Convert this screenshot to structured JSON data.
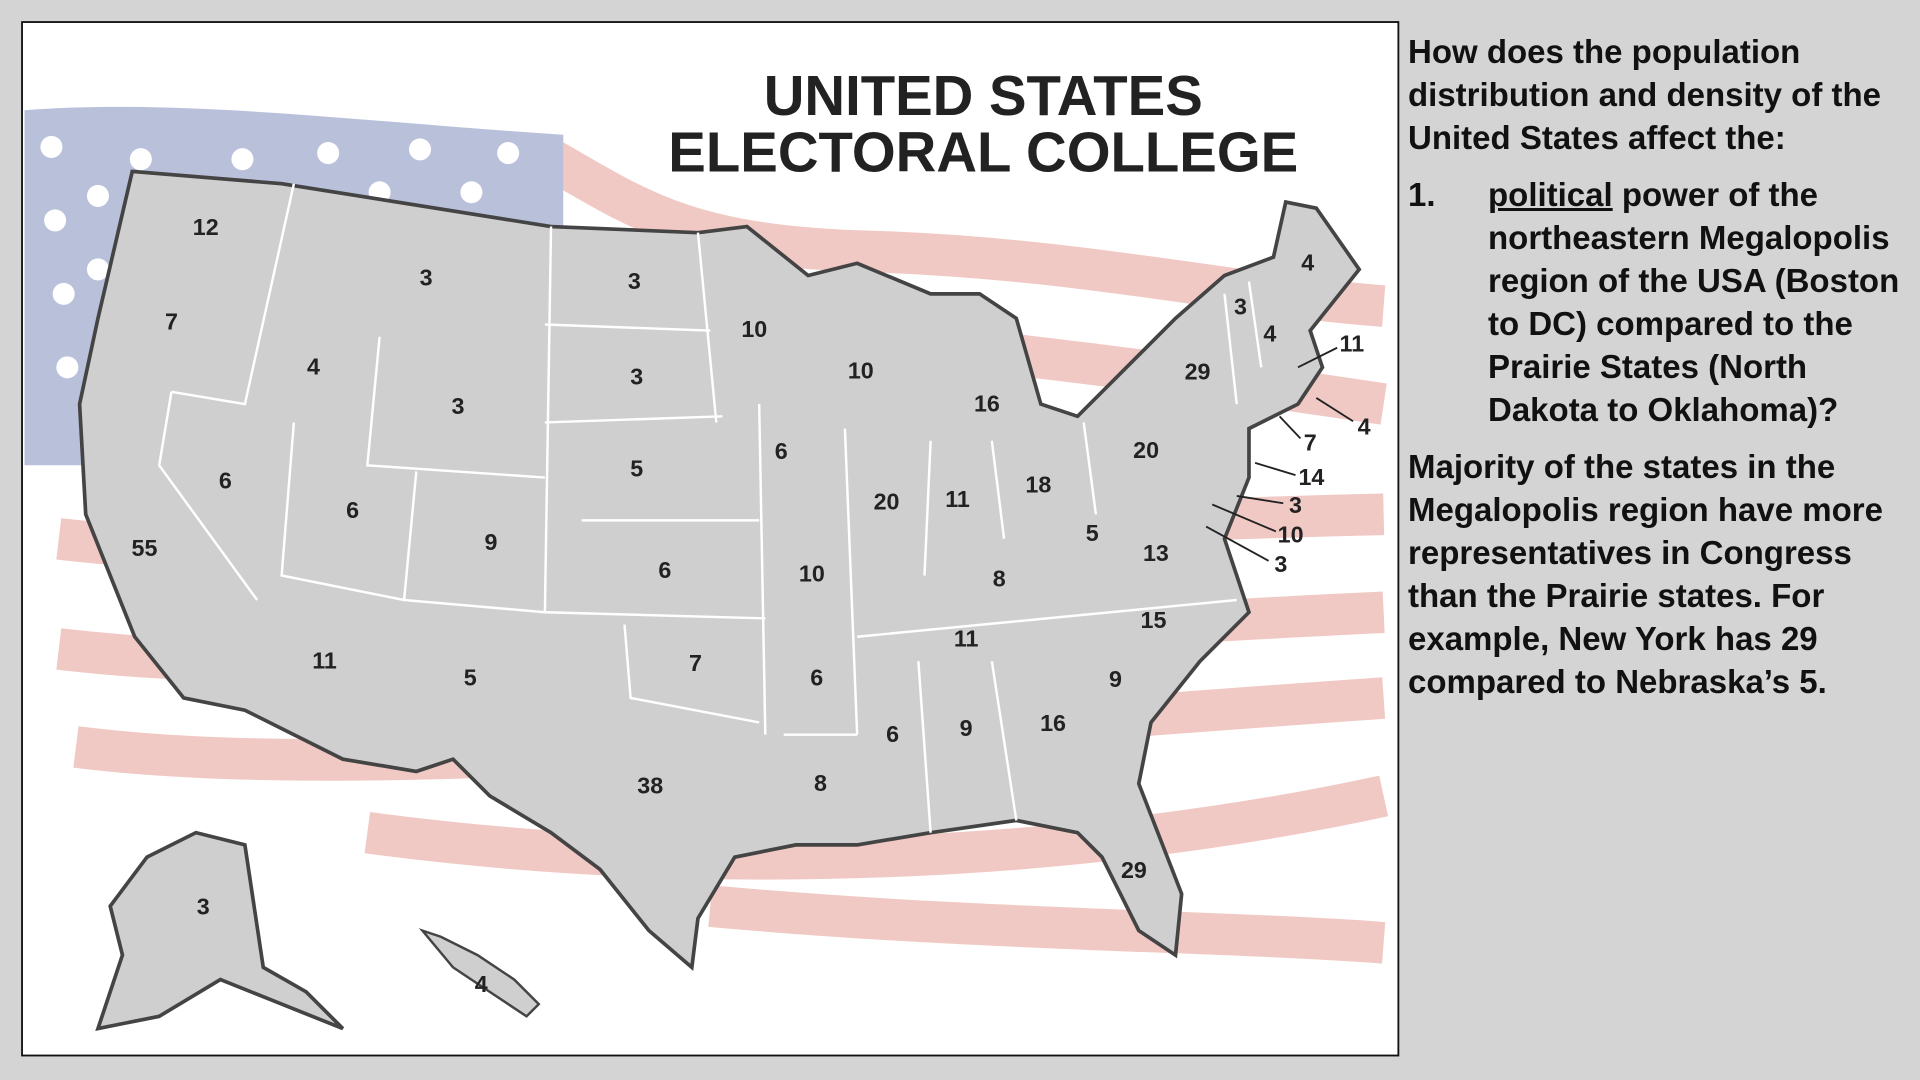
{
  "map": {
    "title_line1": "UNITED STATES",
    "title_line2": "ELECTORAL COLLEGE",
    "state_votes": [
      12,
      7,
      3,
      3,
      10,
      10,
      4,
      3,
      3,
      16,
      6,
      5,
      20,
      11,
      18,
      20,
      29,
      3,
      4,
      4,
      11,
      4,
      7,
      14,
      3,
      10,
      3,
      6,
      6,
      9,
      55,
      6,
      10,
      8,
      5,
      13,
      11,
      5,
      7,
      6,
      11,
      15,
      9,
      6,
      9,
      16,
      38,
      8,
      29,
      3,
      4
    ]
  },
  "side": {
    "question": "How does the population distribution and density of the United States affect the:",
    "item": {
      "number": "1.",
      "underlined": "political",
      "text": "power of the northeastern Megalopolis region of the USA (Boston to DC) compared to the Prairie States (North Dakota to Oklahoma)?"
    },
    "answer": "Majority of the states in the Megalopolis region have more representatives in Congress than the Prairie states. For example, New York has 29 compared to Nebraska’s 5."
  }
}
